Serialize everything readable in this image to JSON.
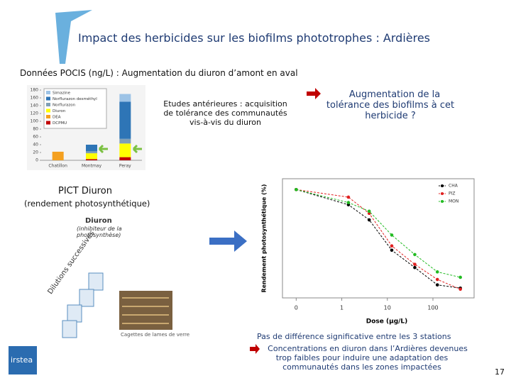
{
  "header": {
    "title": "Impact des herbicides sur les biofilms phototrophes : Ardières"
  },
  "subtitle": "Données POCIS (ng/L) : Augmentation du diuron d’amont en aval",
  "studies": "Etudes antérieures : acquisition de tolérance des communautés vis-à-vis du diuron",
  "hypothesis": "Augmentation de la tolérance des biofilms à cet herbicide ?",
  "pict": {
    "title": "PICT Diuron",
    "subtitle": "(rendement photosynthétique)"
  },
  "diagram": {
    "substance": "Diuron",
    "substance_note": "(inhibiteur de la photosynthèse)",
    "dilutions": "Dilutions successives",
    "photo_caption": "Cagettes de lames de verre"
  },
  "conclusion": {
    "line1": "Pas de différence significative entre les 3 stations",
    "line2": "Concentrations en diuron dans l’Ardières devenues trop faibles pour induire une adaptation des communautés dans les zones impactées"
  },
  "logo": "irstea",
  "page_number": "17",
  "chart_data": [
    {
      "type": "stacked-bar",
      "categories": [
        "Chatillon",
        "Montmay",
        "Peray"
      ],
      "ylim": [
        0,
        180
      ],
      "yticks": [
        0,
        20,
        40,
        60,
        80,
        100,
        120,
        140,
        160,
        180
      ],
      "series": [
        {
          "name": "Simazine",
          "color": "#9dc3e6",
          "values": [
            0,
            0,
            20
          ]
        },
        {
          "name": "Norflurazon desméthyl",
          "color": "#2e75b6",
          "values": [
            0,
            17,
            95
          ]
        },
        {
          "name": "Norflurazon",
          "color": "#7f9fb5",
          "values": [
            0,
            5,
            12
          ]
        },
        {
          "name": "Diuron",
          "color": "#ffff00",
          "values": [
            0,
            15,
            35
          ]
        },
        {
          "name": "DEA",
          "color": "#f4a020",
          "values": [
            22,
            0,
            0
          ]
        },
        {
          "name": "DCPMU",
          "color": "#c00000",
          "values": [
            0,
            3,
            8
          ]
        }
      ]
    },
    {
      "type": "line",
      "x_label": "Dose (µg/L)",
      "y_label": "Rendement photosynthétique (%)",
      "xlog": true,
      "xlim": [
        0.05,
        800
      ],
      "xticks": [
        {
          "value": 0.1,
          "label": "0"
        },
        1,
        10,
        100
      ],
      "x": [
        0.1,
        1.4,
        4,
        12.5,
        40,
        125,
        400
      ],
      "ylim": [
        0,
        110
      ],
      "series": [
        {
          "name": "CHA",
          "color": "#000000",
          "values": [
            100,
            86,
            72,
            44,
            28,
            12,
            9
          ]
        },
        {
          "name": "PIZ",
          "color": "#e02020",
          "values": [
            100,
            93,
            78,
            48,
            31,
            17,
            8
          ]
        },
        {
          "name": "MON",
          "color": "#22bb22",
          "values": [
            100,
            88,
            80,
            58,
            40,
            24,
            19
          ]
        }
      ]
    }
  ]
}
